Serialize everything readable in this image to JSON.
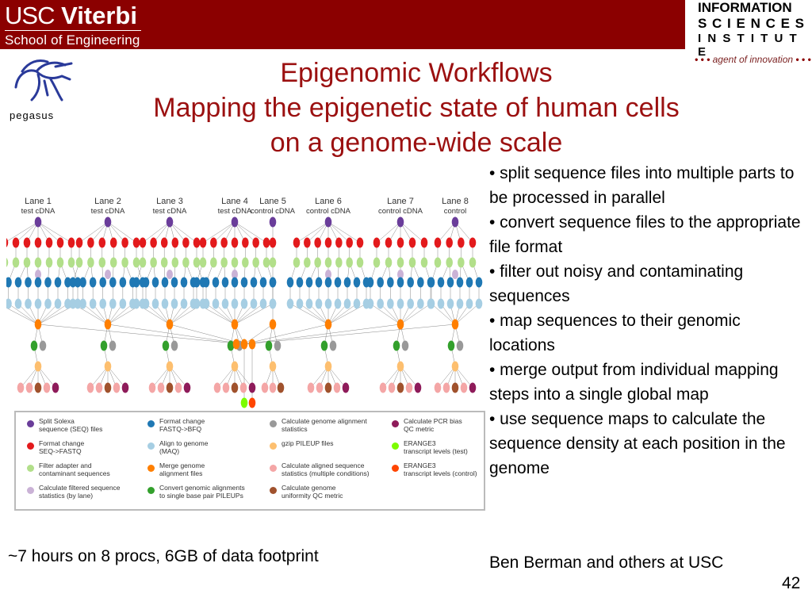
{
  "header": {
    "usc_word": "USC",
    "viterbi_word": "Viterbi",
    "school": "School of Engineering",
    "isi_lines": [
      "INFORMATION",
      "S C I E N C E S",
      "I N S T I T U T E"
    ],
    "tagline": "agent of innovation",
    "tagline_dots": "• • •"
  },
  "pegasus_label": "pegasus",
  "title": {
    "line1": "Epigenomic Workflows",
    "line2": "Mapping the epigenetic state of human cells",
    "line3": "on a genome-wide scale"
  },
  "bullets": [
    "•  split sequence files into multiple parts to be processed in parallel",
    "•  convert sequence files to the appropriate file format",
    "•  filter out noisy and contaminating sequences",
    "•  map sequences to their genomic locations",
    "•  merge output from individual mapping steps into a single global map",
    "•  use sequence maps to calculate the sequence density at each position in the genome"
  ],
  "lanes": [
    {
      "name": "Lane 1",
      "type": "test cDNA"
    },
    {
      "name": "Lane 2",
      "type": "test cDNA"
    },
    {
      "name": "Lane 3",
      "type": "test cDNA"
    },
    {
      "name": "Lane 4",
      "type": "test cDNA"
    },
    {
      "name": "Lane 5",
      "type": "control cDNA"
    },
    {
      "name": "Lane 6",
      "type": "control cDNA"
    },
    {
      "name": "Lane 7",
      "type": "control cDNA"
    },
    {
      "name": "Lane 8",
      "type": "control"
    }
  ],
  "legend": [
    {
      "label": "Split Solexa\nsequence (SEQ) files",
      "color": "#6a3d9a"
    },
    {
      "label": "Format change\nSEQ->FASTQ",
      "color": "#e31a1c"
    },
    {
      "label": "Filter adapter and\ncontaminant sequences",
      "color": "#b2df8a"
    },
    {
      "label": "Calculate filtered sequence\nstatistics (by lane)",
      "color": "#cab2d6"
    },
    {
      "label": "Format change\nFASTQ->BFQ",
      "color": "#1f78b4"
    },
    {
      "label": "Align to genome\n(MAQ)",
      "color": "#a6cee3"
    },
    {
      "label": "Merge genome\nalignment files",
      "color": "#ff7f00"
    },
    {
      "label": "Convert genomic alignments\nto single base pair PILEUPs",
      "color": "#33a02c"
    },
    {
      "label": "Calculate genome alignment\nstatistics",
      "color": "#999999"
    },
    {
      "label": "gzip PILEUP files",
      "color": "#fdbf6f"
    },
    {
      "label": "Calculate aligned sequence\nstatistics (multiple conditions)",
      "color": "#f4a6a6"
    },
    {
      "label": "Calculate genome\nuniformity QC metric",
      "color": "#a0522d"
    },
    {
      "label": "Calculate PCR bias\nQC metric",
      "color": "#8e1b5a"
    },
    {
      "label": "ERANGE3\ntranscript levels (test)",
      "color": "#7cfc00"
    },
    {
      "label": "ERANGE3\ntranscript levels (control)",
      "color": "#ff4500"
    }
  ],
  "footer_left": "~7 hours on 8 procs, 6GB of data footprint",
  "footer_right": "Ben Berman and others at USC",
  "page_number": "42"
}
